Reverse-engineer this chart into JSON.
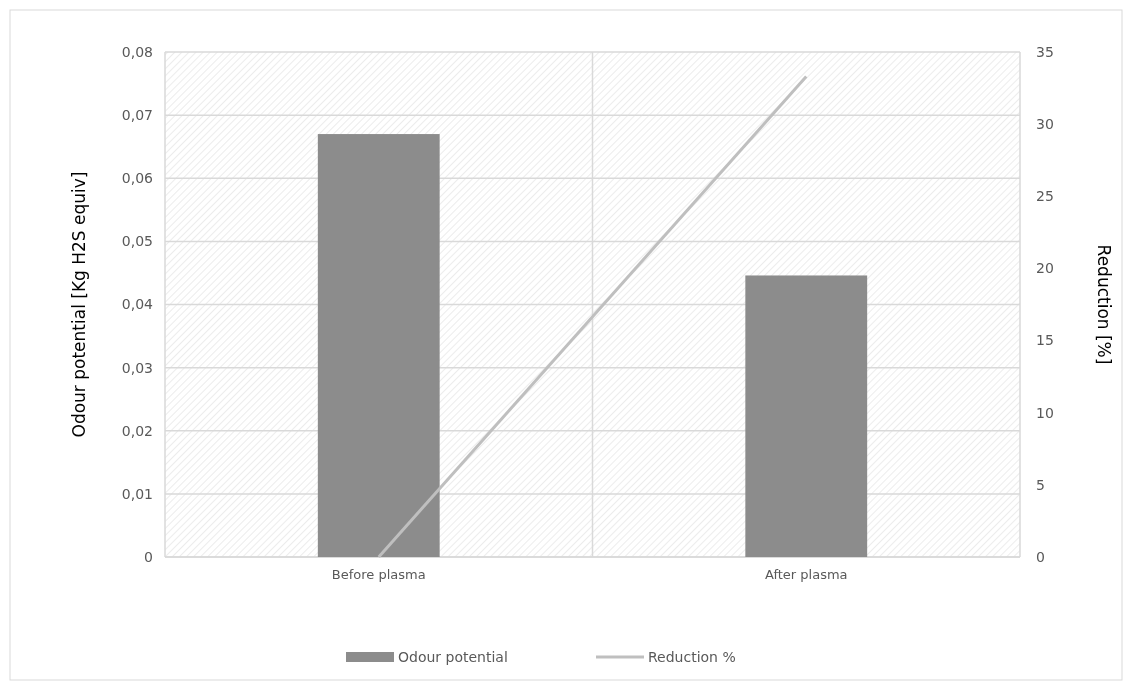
{
  "chart_data": {
    "type": "bar",
    "categories": [
      "Before plasma",
      "After plasma"
    ],
    "series": [
      {
        "name": "Odour potential",
        "color": "#8c8c8c",
        "values": [
          0.067,
          0.0446
        ]
      },
      {
        "name": "Reduction %",
        "type": "line",
        "axis": "y2",
        "color": "#bfbfbf",
        "values": [
          0,
          33.3
        ]
      }
    ],
    "ylabel": "Odour potential [Kg H2S equiv]",
    "y2label": "Reduction [%]",
    "ylim": [
      0,
      0.08
    ],
    "yticks": [
      0,
      {
        "value": 0.01,
        "label": "0,01"
      },
      {
        "value": 0.02,
        "label": "0,02"
      },
      {
        "value": 0.03,
        "label": "0,03"
      },
      {
        "value": 0.04,
        "label": "0,04"
      },
      {
        "value": 0.05,
        "label": "0,05"
      },
      {
        "value": 0.06,
        "label": "0,06"
      },
      {
        "value": 0.07,
        "label": "0,07"
      },
      {
        "value": 0.08,
        "label": "0,08"
      }
    ],
    "y2lim": [
      0,
      35
    ],
    "y2ticks": [
      0,
      5,
      10,
      15,
      20,
      25,
      30,
      35
    ],
    "grid": true,
    "legend": "bottom"
  }
}
